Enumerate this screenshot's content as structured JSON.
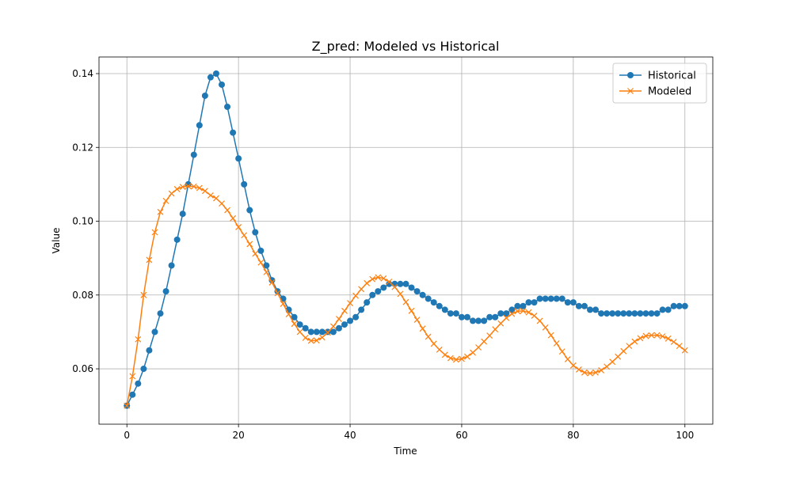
{
  "chart_data": {
    "type": "line",
    "title": "Z_pred: Modeled vs Historical",
    "xlabel": "Time",
    "ylabel": "Value",
    "x": [
      0,
      1,
      2,
      3,
      4,
      5,
      6,
      7,
      8,
      9,
      10,
      11,
      12,
      13,
      14,
      15,
      16,
      17,
      18,
      19,
      20,
      21,
      22,
      23,
      24,
      25,
      26,
      27,
      28,
      29,
      30,
      31,
      32,
      33,
      34,
      35,
      36,
      37,
      38,
      39,
      40,
      41,
      42,
      43,
      44,
      45,
      46,
      47,
      48,
      49,
      50,
      51,
      52,
      53,
      54,
      55,
      56,
      57,
      58,
      59,
      60,
      61,
      62,
      63,
      64,
      65,
      66,
      67,
      68,
      69,
      70,
      71,
      72,
      73,
      74,
      75,
      76,
      77,
      78,
      79,
      80,
      81,
      82,
      83,
      84,
      85,
      86,
      87,
      88,
      89,
      90,
      91,
      92,
      93,
      94,
      95,
      96,
      97,
      98,
      99,
      100
    ],
    "series": [
      {
        "name": "Historical",
        "color": "#1f77b4",
        "marker": "o",
        "values": [
          0.05,
          0.053,
          0.056,
          0.06,
          0.065,
          0.07,
          0.075,
          0.081,
          0.088,
          0.095,
          0.102,
          0.11,
          0.118,
          0.126,
          0.134,
          0.139,
          0.14,
          0.137,
          0.131,
          0.124,
          0.117,
          0.11,
          0.103,
          0.097,
          0.092,
          0.088,
          0.084,
          0.081,
          0.079,
          0.076,
          0.074,
          0.072,
          0.071,
          0.07,
          0.07,
          0.07,
          0.07,
          0.07,
          0.071,
          0.072,
          0.073,
          0.074,
          0.076,
          0.078,
          0.08,
          0.081,
          0.082,
          0.083,
          0.083,
          0.083,
          0.083,
          0.082,
          0.081,
          0.08,
          0.079,
          0.078,
          0.077,
          0.076,
          0.075,
          0.075,
          0.074,
          0.074,
          0.073,
          0.073,
          0.073,
          0.074,
          0.074,
          0.075,
          0.075,
          0.076,
          0.077,
          0.077,
          0.078,
          0.078,
          0.079,
          0.079,
          0.079,
          0.079,
          0.079,
          0.078,
          0.078,
          0.077,
          0.077,
          0.076,
          0.076,
          0.075,
          0.075,
          0.075,
          0.075,
          0.075,
          0.075,
          0.075,
          0.075,
          0.075,
          0.075,
          0.075,
          0.076,
          0.076,
          0.077,
          0.077,
          0.077
        ]
      },
      {
        "name": "Modeled",
        "color": "#ff7f0e",
        "marker": "x",
        "values": [
          0.05,
          0.058,
          0.068,
          0.08,
          0.0895,
          0.097,
          0.1025,
          0.1055,
          0.1075,
          0.1087,
          0.1093,
          0.1095,
          0.1094,
          0.109,
          0.1082,
          0.107,
          0.1062,
          0.1048,
          0.103,
          0.1008,
          0.0984,
          0.0962,
          0.0938,
          0.0912,
          0.0888,
          0.0862,
          0.0834,
          0.0805,
          0.0776,
          0.0748,
          0.0722,
          0.07,
          0.0684,
          0.0676,
          0.0677,
          0.0685,
          0.0698,
          0.0715,
          0.0735,
          0.0757,
          0.0778,
          0.0798,
          0.0816,
          0.0832,
          0.0843,
          0.0848,
          0.0845,
          0.0836,
          0.0822,
          0.0803,
          0.0781,
          0.0757,
          0.0733,
          0.0709,
          0.0687,
          0.0668,
          0.0652,
          0.0638,
          0.0629,
          0.0625,
          0.0627,
          0.0633,
          0.0644,
          0.0658,
          0.0674,
          0.069,
          0.0707,
          0.0723,
          0.0738,
          0.0749,
          0.0756,
          0.0757,
          0.0753,
          0.0744,
          0.073,
          0.0712,
          0.0691,
          0.0669,
          0.0647,
          0.0626,
          0.0609,
          0.0598,
          0.059,
          0.0588,
          0.059,
          0.0596,
          0.0606,
          0.0619,
          0.0633,
          0.0648,
          0.0662,
          0.0674,
          0.0683,
          0.0689,
          0.0691,
          0.0691,
          0.0688,
          0.0682,
          0.0673,
          0.0662,
          0.065
        ]
      }
    ],
    "xlim": [
      -5,
      105
    ],
    "xticks": [
      0,
      20,
      40,
      60,
      80,
      100
    ],
    "ylim": [
      0.045,
      0.1445
    ],
    "yticks": [
      0.06,
      0.08,
      {
        "value": 0.1,
        "label": "0.10"
      },
      0.12,
      0.14
    ],
    "grid": true,
    "legend": "upper right"
  }
}
